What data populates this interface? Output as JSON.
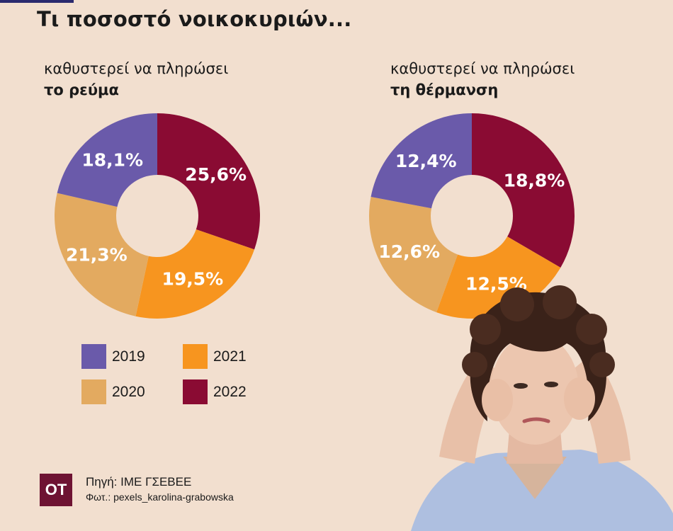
{
  "title": "Τι ποσοστό νοικοκυριών...",
  "colors": {
    "2019": "#6a5aaa",
    "2020": "#e3aa60",
    "2021": "#f7951f",
    "2022": "#8a0b33",
    "background": "#f2dfcf"
  },
  "chart_data": [
    {
      "type": "pie",
      "subtitle_line1": "καθυστερεί να πληρώσει",
      "subtitle_line2": "το ρεύμα",
      "categories": [
        "2022",
        "2021",
        "2020",
        "2019"
      ],
      "values": [
        25.6,
        19.5,
        21.3,
        18.1
      ],
      "labels": [
        "25,6%",
        "19,5%",
        "21,3%",
        "18,1%"
      ]
    },
    {
      "type": "pie",
      "subtitle_line1": "καθυστερεί να πληρώσει",
      "subtitle_line2": "τη θέρμανση",
      "categories": [
        "2022",
        "2021",
        "2020",
        "2019"
      ],
      "values": [
        18.8,
        12.5,
        12.6,
        12.4
      ],
      "labels": [
        "18,8%",
        "12,5%",
        "12,6%",
        "12,4%"
      ]
    }
  ],
  "legend": [
    "2019",
    "2021",
    "2020",
    "2022"
  ],
  "source": "Πηγή: ΙΜΕ ΓΣΕΒΕΕ",
  "photo_credit": "Φωτ.: pexels_karolina-grabowska",
  "logo_text": "ΟΤ",
  "photo_icon": "worried-woman-photo"
}
